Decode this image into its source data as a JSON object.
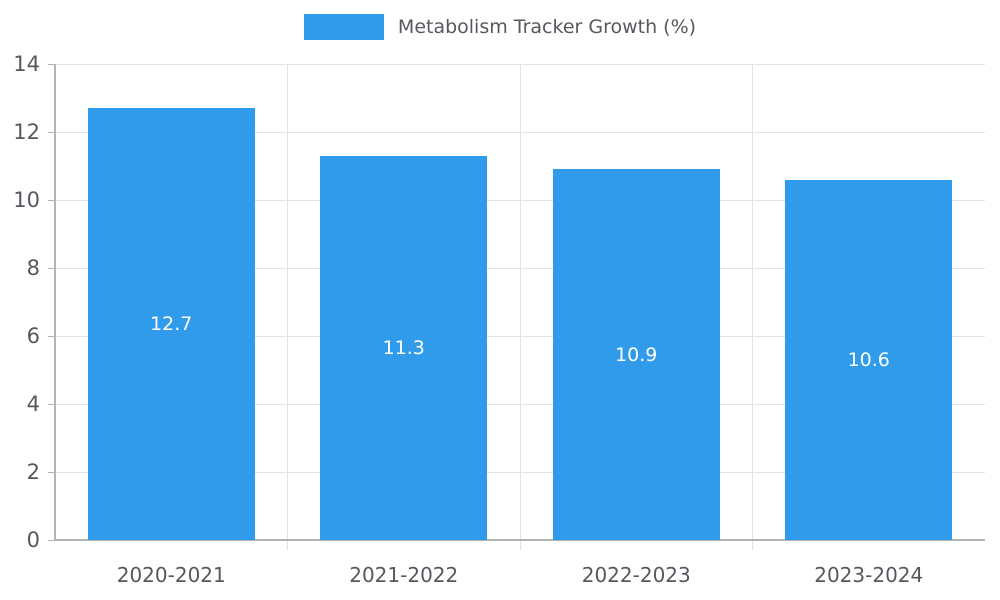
{
  "chart_data": {
    "type": "bar",
    "title": "Metabolism Tracker Growth (%)",
    "categories": [
      "2020-2021",
      "2021-2022",
      "2022-2023",
      "2023-2024"
    ],
    "values": [
      12.7,
      11.3,
      10.9,
      10.6
    ],
    "value_labels": [
      "12.7",
      "11.3",
      "10.9",
      "10.6"
    ],
    "ylim": [
      0,
      14
    ],
    "ytick_step": 2,
    "ytick_labels": [
      "0",
      "2",
      "4",
      "6",
      "8",
      "10",
      "12",
      "14"
    ],
    "grid": true,
    "legend_position": "top",
    "value_label_position": "inside-center"
  },
  "colors": {
    "bar": "#2f9bea",
    "grid": "#e3e3e3",
    "axis": "#b3b3b3",
    "tick_text": "#55595e",
    "value_text": "#ffffff"
  }
}
